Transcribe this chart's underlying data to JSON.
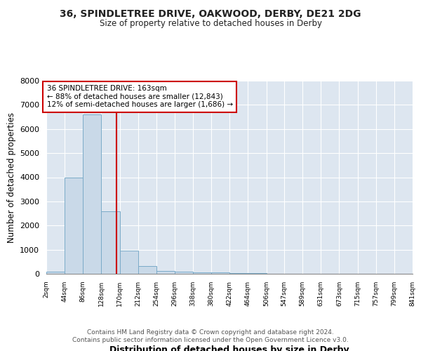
{
  "title1": "36, SPINDLETREE DRIVE, OAKWOOD, DERBY, DE21 2DG",
  "title2": "Size of property relative to detached houses in Derby",
  "xlabel": "Distribution of detached houses by size in Derby",
  "ylabel": "Number of detached properties",
  "property_label": "36 SPINDLETREE DRIVE: 163sqm",
  "annotation_line1": "← 88% of detached houses are smaller (12,843)",
  "annotation_line2": "12% of semi-detached houses are larger (1,686) →",
  "bin_edges": [
    2,
    44,
    86,
    128,
    170,
    212,
    254,
    296,
    338,
    380,
    422,
    464,
    506,
    547,
    589,
    631,
    673,
    715,
    757,
    799,
    841
  ],
  "bar_heights": [
    100,
    4000,
    6600,
    2600,
    950,
    330,
    130,
    85,
    70,
    60,
    30,
    20,
    10,
    5,
    3,
    2,
    1,
    1,
    1,
    1
  ],
  "bar_color": "#c9d9e8",
  "bar_edgecolor": "#7aaac8",
  "vline_color": "#cc0000",
  "vline_x": 163,
  "background_color": "#dde6f0",
  "grid_color": "#ffffff",
  "fig_color": "#ffffff",
  "ylim": [
    0,
    8000
  ],
  "yticks": [
    0,
    1000,
    2000,
    3000,
    4000,
    5000,
    6000,
    7000,
    8000
  ],
  "tick_labels": [
    "2sqm",
    "44sqm",
    "86sqm",
    "128sqm",
    "170sqm",
    "212sqm",
    "254sqm",
    "296sqm",
    "338sqm",
    "380sqm",
    "422sqm",
    "464sqm",
    "506sqm",
    "547sqm",
    "589sqm",
    "631sqm",
    "673sqm",
    "715sqm",
    "757sqm",
    "799sqm",
    "841sqm"
  ],
  "footer1": "Contains HM Land Registry data © Crown copyright and database right 2024.",
  "footer2": "Contains public sector information licensed under the Open Government Licence v3.0."
}
